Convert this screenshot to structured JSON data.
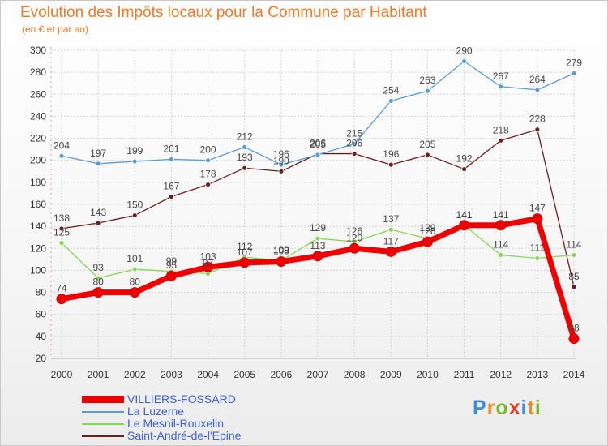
{
  "header": {
    "title": "Evolution des Impôts locaux pour la Commune par Habitant",
    "subtitle": "(en € et par an)"
  },
  "brand": {
    "letters": [
      "P",
      "r",
      "o",
      "x",
      "i",
      "t",
      "i"
    ],
    "colors": [
      "#3d8ed8",
      "#f08a24",
      "#7bb82e",
      "#e23b2a",
      "#3d8ed8",
      "#f08a24",
      "#7bb82e"
    ]
  },
  "chart_data": {
    "type": "line",
    "x": [
      "2000",
      "2001",
      "2002",
      "2003",
      "2004",
      "2005",
      "2006",
      "2007",
      "2008",
      "2009",
      "2010",
      "2011",
      "2012",
      "2013",
      "2014"
    ],
    "ylim": [
      20,
      300
    ],
    "yticks": [
      20,
      40,
      60,
      80,
      100,
      120,
      140,
      160,
      180,
      200,
      220,
      240,
      260,
      280,
      300
    ],
    "grid": true,
    "legend_position": "bottom-left",
    "series": [
      {
        "name": "VILLIERS-FOSSARD",
        "color": "#ee0000",
        "values": [
          74,
          80,
          80,
          95,
          103,
          107,
          108,
          113,
          120,
          117,
          126,
          141,
          141,
          147,
          38
        ]
      },
      {
        "name": "La Luzerne",
        "color": "#5a9bd5",
        "values": [
          204,
          197,
          199,
          201,
          200,
          212,
          196,
          205,
          215,
          254,
          263,
          290,
          267,
          264,
          279
        ]
      },
      {
        "name": "Le Mesnil-Rouxelin",
        "color": "#88d455",
        "values": [
          125,
          93,
          101,
          99,
          97,
          112,
          109,
          129,
          126,
          137,
          129,
          141,
          114,
          111,
          114
        ]
      },
      {
        "name": "Saint-André-de-l'Epine",
        "color": "#6b1f1f",
        "values": [
          138,
          143,
          150,
          167,
          178,
          193,
          190,
          206,
          206,
          196,
          205,
          192,
          218,
          228,
          85
        ]
      }
    ]
  }
}
